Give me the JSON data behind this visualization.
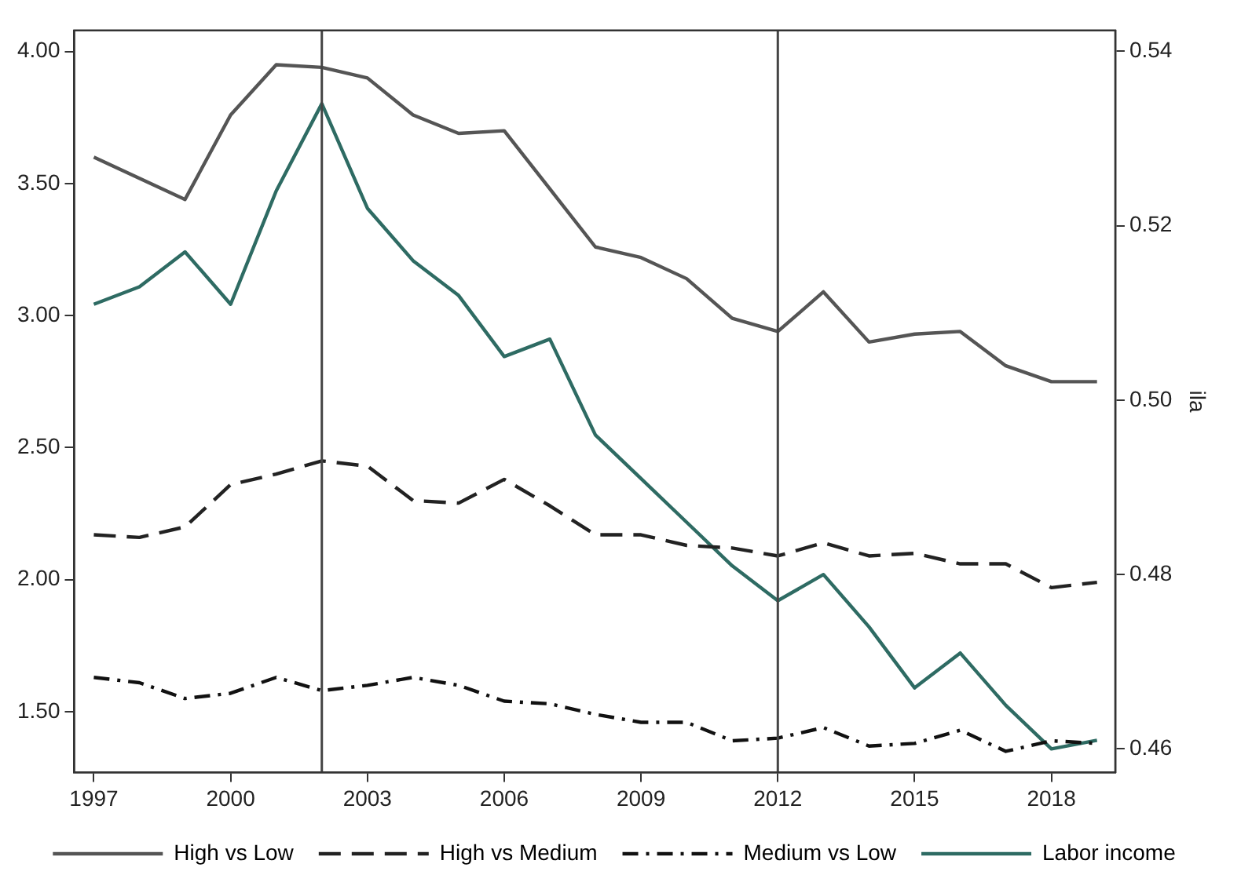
{
  "chart_data": {
    "type": "line",
    "x": [
      1997,
      1998,
      1999,
      2000,
      2001,
      2002,
      2003,
      2004,
      2005,
      2006,
      2007,
      2008,
      2009,
      2010,
      2011,
      2012,
      2013,
      2014,
      2015,
      2016,
      2017,
      2018,
      2019
    ],
    "series": [
      {
        "name": "High vs Low",
        "color": "#555555",
        "line_style": "solid",
        "values": [
          3.6,
          3.52,
          3.44,
          3.76,
          3.95,
          3.94,
          3.9,
          3.76,
          3.69,
          3.7,
          3.48,
          3.26,
          3.22,
          3.14,
          2.99,
          2.94,
          3.09,
          2.9,
          2.93,
          2.94,
          2.81,
          2.75,
          2.75
        ]
      },
      {
        "name": "High vs Medium",
        "color": "#222222",
        "line_style": "dashed",
        "values": [
          2.17,
          2.16,
          2.2,
          2.36,
          2.4,
          2.45,
          2.43,
          2.3,
          2.29,
          2.38,
          2.28,
          2.17,
          2.17,
          2.13,
          2.12,
          2.09,
          2.14,
          2.09,
          2.1,
          2.06,
          2.06,
          1.97,
          1.99
        ]
      },
      {
        "name": "Medium vs Low",
        "color": "#111111",
        "line_style": "dashdot",
        "values": [
          1.63,
          1.61,
          1.55,
          1.57,
          1.63,
          1.58,
          1.6,
          1.63,
          1.6,
          1.54,
          1.53,
          1.49,
          1.46,
          1.46,
          1.39,
          1.4,
          1.44,
          1.37,
          1.38,
          1.43,
          1.35,
          1.39,
          1.38
        ]
      },
      {
        "name": "Labor income",
        "color": "#2e6b63",
        "line_style": "solid",
        "axis": "y2",
        "values": [
          0.511,
          0.513,
          0.517,
          0.511,
          0.524,
          0.534,
          0.522,
          0.516,
          0.512,
          0.505,
          0.507,
          0.496,
          0.491,
          0.486,
          0.481,
          0.477,
          0.48,
          0.474,
          0.467,
          0.471,
          0.465,
          0.46,
          0.461
        ]
      }
    ],
    "xlim": [
      1996.57,
      2019.4
    ],
    "xticks": [
      1997,
      2000,
      2003,
      2006,
      2009,
      2012,
      2015,
      2018
    ],
    "ylim": [
      1.27,
      4.08
    ],
    "yticks": [
      {
        "value": 1.5,
        "label": "1.50"
      },
      {
        "value": 2,
        "label": "2.00"
      },
      {
        "value": 2.5,
        "label": "2.50"
      },
      {
        "value": 3,
        "label": "3.00"
      },
      {
        "value": 3.5,
        "label": "3.50"
      },
      {
        "value": 4,
        "label": "4.00"
      }
    ],
    "y2lim": [
      0.4573,
      0.5424
    ],
    "y2ticks": [
      0.46,
      0.48,
      {
        "value": 0.5,
        "label": "0.50"
      },
      0.52,
      0.54
    ],
    "y2label": "ila",
    "ref_lines": [
      {
        "axis": "x",
        "value": 2002,
        "color": "#444444"
      },
      {
        "axis": "x",
        "value": 2012,
        "color": "#444444"
      }
    ],
    "grid": false,
    "legend": "bottom",
    "marker": "none"
  }
}
